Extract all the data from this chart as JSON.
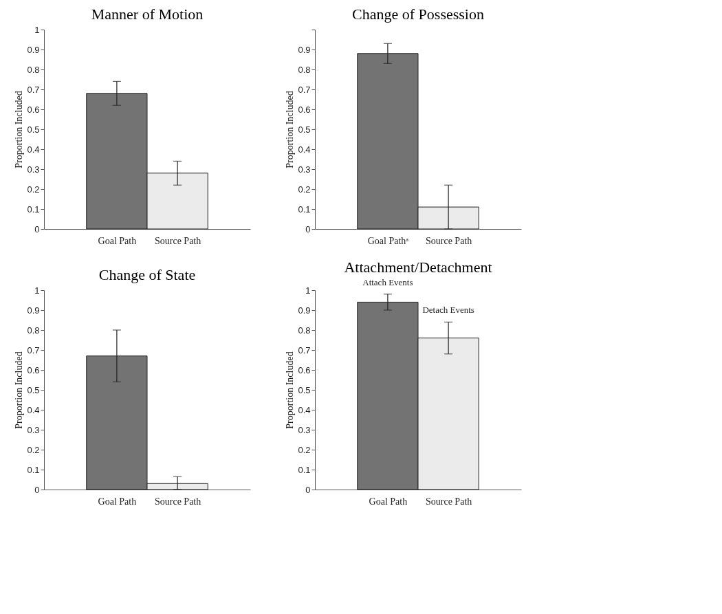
{
  "chart_data": [
    {
      "type": "bar",
      "title": "Manner of Motion",
      "ylabel": "Proportion Included",
      "categories": [
        "Goal Path",
        "Source Path"
      ],
      "values": [
        0.68,
        0.28
      ],
      "colors": [
        "#737373",
        "#ebebeb"
      ],
      "errors": [
        0.06,
        0.06
      ],
      "ylim": [
        0,
        1
      ],
      "yticks": [
        0,
        0.1,
        0.2,
        0.3,
        0.4,
        0.5,
        0.6,
        0.7,
        0.8,
        0.9,
        1
      ],
      "grid": false,
      "legend": false
    },
    {
      "type": "bar",
      "title": "Change of Possession",
      "ylabel": "Proportion Included",
      "categories": [
        "Goal Pathᵃ",
        "Source Path"
      ],
      "values": [
        0.88,
        0.11
      ],
      "colors": [
        "#737373",
        "#ebebeb"
      ],
      "errors": [
        0.05,
        0.11
      ],
      "ylim": [
        0,
        1
      ],
      "yticks": [
        0,
        0.1,
        0.2,
        0.3,
        0.4,
        0.5,
        0.6,
        0.7,
        0.8,
        0.9,
        {
          "value": 1,
          "label": null
        }
      ],
      "grid": false,
      "legend": false
    },
    {
      "type": "bar",
      "title": "Change of State",
      "ylabel": "Proportion Included",
      "categories": [
        "Goal Path",
        "Source Path"
      ],
      "values": [
        0.67,
        0.03
      ],
      "colors": [
        "#737373",
        "#ebebeb"
      ],
      "errors": [
        0.13,
        [
          0,
          0.065
        ]
      ],
      "ylim": [
        0,
        1
      ],
      "yticks": [
        0,
        0.1,
        0.2,
        0.3,
        0.4,
        0.5,
        0.6,
        0.7,
        0.8,
        0.9,
        1
      ],
      "grid": false,
      "legend": false
    },
    {
      "type": "bar",
      "title": "Attachment/Detachment",
      "ylabel": "Proportion Included",
      "categories": [
        "Goal Path",
        "Source Path"
      ],
      "values": [
        0.94,
        0.76
      ],
      "colors": [
        "#737373",
        "#ebebeb"
      ],
      "errors": [
        0.04,
        0.08
      ],
      "ylim": [
        0,
        1
      ],
      "yticks": [
        0,
        0.1,
        0.2,
        0.3,
        0.4,
        0.5,
        0.6,
        0.7,
        0.8,
        0.9,
        1
      ],
      "grid": false,
      "legend": false,
      "annotations": [
        "Attach Events",
        "Detach Events"
      ]
    }
  ]
}
